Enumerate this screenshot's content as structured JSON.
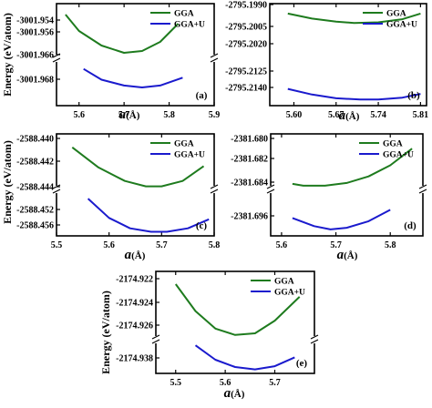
{
  "figure": {
    "ylabel": "Energy (eV/atom)",
    "xlabel_symbol": "a",
    "xlabel_unit": "(Å)"
  },
  "chart_data": [
    {
      "type": "line",
      "panel_label": "(a)",
      "ylabel": "Energy (eV/atom)",
      "xlabel": "a(Å)",
      "legend": "top-right",
      "grid": false,
      "axis_break": "y",
      "xlim": [
        5.55,
        5.9
      ],
      "xticks": [
        "5.6",
        "5.7",
        "5.8",
        "5.9"
      ],
      "xtick_values": [
        5.6,
        5.7,
        5.8,
        5.9
      ],
      "yticks": [
        "-3001.954",
        "-3001.956",
        "-3001.966",
        "-3001.968"
      ],
      "series": [
        {
          "name": "GGA",
          "color": "#1e7b1e",
          "x": [
            5.57,
            5.6,
            5.65,
            5.7,
            5.74,
            5.78,
            5.82
          ],
          "y": [
            -3001.9541,
            -3001.955,
            -3001.9558,
            -3001.9562,
            -3001.9561,
            -3001.9556,
            -3001.9546
          ]
        },
        {
          "name": "GGA+U",
          "color": "#1a1acd",
          "x": [
            5.61,
            5.65,
            5.7,
            5.74,
            5.78,
            5.83
          ],
          "y": [
            -3001.9656,
            -3001.9667,
            -3001.9673,
            -3001.9675,
            -3001.9673,
            -3001.9665
          ]
        }
      ]
    },
    {
      "type": "line",
      "panel_label": "(b)",
      "ylabel": "Energy (eV/atom)",
      "xlabel": "a(Å)",
      "legend": "top-right",
      "grid": false,
      "xlim": [
        5.56,
        5.82
      ],
      "xticks": [
        "5.60",
        "5.67",
        "5.74",
        "5.81"
      ],
      "xtick_values": [
        5.6,
        5.67,
        5.74,
        5.81
      ],
      "yticks": [
        "-2795.1990",
        "-2795.2005",
        "-2795.2020",
        "-2795.2125",
        "-2795.2140"
      ],
      "series": [
        {
          "name": "GGA",
          "color": "#1e7b1e",
          "x": [
            5.59,
            5.63,
            5.67,
            5.7,
            5.74,
            5.78,
            5.81
          ],
          "y": [
            -2795.2004,
            -2795.2012,
            -2795.2017,
            -2795.2019,
            -2795.2018,
            -2795.2013,
            -2795.2004
          ]
        },
        {
          "name": "GGA+U",
          "color": "#1a1acd",
          "x": [
            5.59,
            5.63,
            5.67,
            5.71,
            5.74,
            5.78,
            5.81
          ],
          "y": [
            -2795.2125,
            -2795.2134,
            -2795.214,
            -2795.2142,
            -2795.2142,
            -2795.2139,
            -2795.2133
          ]
        }
      ]
    },
    {
      "type": "line",
      "panel_label": "(c)",
      "ylabel": "Energy (eV/atom)",
      "xlabel": "a(Å)",
      "legend": "top-right",
      "grid": false,
      "axis_break": "y",
      "xlim": [
        5.5,
        5.8
      ],
      "xticks": [
        "5.5",
        "5.6",
        "5.7",
        "5.8"
      ],
      "xtick_values": [
        5.5,
        5.6,
        5.7,
        5.8
      ],
      "yticks": [
        "-2588.440",
        "-2588.442",
        "-2588.444",
        "-2588.452",
        "-2588.456"
      ],
      "series": [
        {
          "name": "GGA",
          "color": "#1e7b1e",
          "x": [
            5.53,
            5.58,
            5.63,
            5.67,
            5.7,
            5.74,
            5.78
          ],
          "y": [
            -2588.4408,
            -2588.4423,
            -2588.4433,
            -2588.4437,
            -2588.4437,
            -2588.4433,
            -2588.4422
          ]
        },
        {
          "name": "GGA+U",
          "color": "#1a1acd",
          "x": [
            5.56,
            5.6,
            5.64,
            5.68,
            5.71,
            5.75,
            5.79
          ],
          "y": [
            -2588.4512,
            -2588.454,
            -2588.4555,
            -2588.456,
            -2588.456,
            -2588.4555,
            -2588.4542
          ]
        }
      ]
    },
    {
      "type": "line",
      "panel_label": "(d)",
      "ylabel": "Energy (eV/atom)",
      "xlabel": "a(Å)",
      "legend": "top-right",
      "grid": false,
      "axis_break": "y",
      "xlim": [
        5.58,
        5.86
      ],
      "xticks": [
        "5.6",
        "5.7",
        "5.8"
      ],
      "xtick_values": [
        5.6,
        5.7,
        5.8
      ],
      "yticks": [
        "-2381.680",
        "-2381.682",
        "-2381.684",
        "-2381.696"
      ],
      "series": [
        {
          "name": "GGA",
          "color": "#1e7b1e",
          "x": [
            5.62,
            5.64,
            5.68,
            5.72,
            5.76,
            5.8,
            5.84
          ],
          "y": [
            -2381.6848,
            -2381.685,
            -2381.685,
            -2381.6847,
            -2381.684,
            -2381.6828,
            -2381.681
          ]
        },
        {
          "name": "GGA+U",
          "color": "#1a1acd",
          "x": [
            5.62,
            5.66,
            5.69,
            5.72,
            5.76,
            5.8
          ],
          "y": [
            -2381.6957,
            -2381.6962,
            -2381.6964,
            -2381.6963,
            -2381.6959,
            -2381.6952
          ]
        }
      ]
    },
    {
      "type": "line",
      "panel_label": "(e)",
      "ylabel": "Energy (eV/atom)",
      "xlabel": "a(Å)",
      "legend": "top-right",
      "grid": false,
      "axis_break": "y",
      "xlim": [
        5.46,
        5.78
      ],
      "xticks": [
        "5.5",
        "5.6",
        "5.7"
      ],
      "xtick_values": [
        5.5,
        5.6,
        5.7
      ],
      "yticks": [
        "-2174.922",
        "-2174.924",
        "-2174.926",
        "-2174.938"
      ],
      "series": [
        {
          "name": "GGA",
          "color": "#1e7b1e",
          "x": [
            5.5,
            5.54,
            5.58,
            5.62,
            5.66,
            5.7,
            5.75
          ],
          "y": [
            -2174.923,
            -2174.9247,
            -2174.9258,
            -2174.9262,
            -2174.9261,
            -2174.9253,
            -2174.9238
          ]
        },
        {
          "name": "GGA+U",
          "color": "#1a1acd",
          "x": [
            5.54,
            5.58,
            5.62,
            5.66,
            5.7,
            5.74
          ],
          "y": [
            -2174.9357,
            -2174.9375,
            -2174.9384,
            -2174.9387,
            -2174.9383,
            -2174.9372
          ]
        }
      ]
    }
  ]
}
